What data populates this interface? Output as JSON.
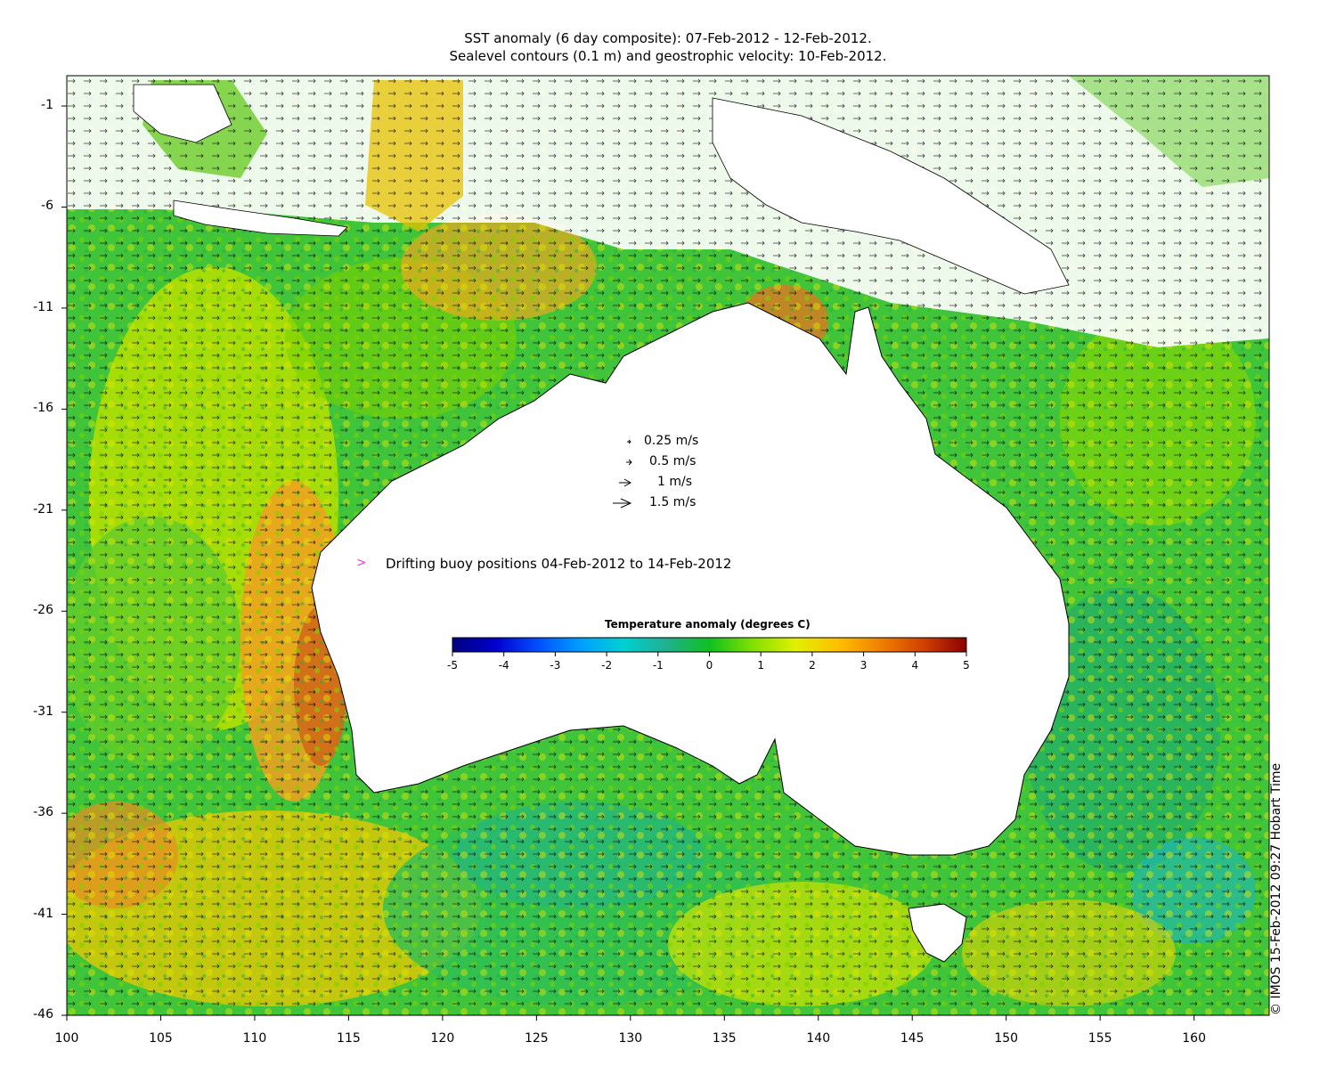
{
  "title": {
    "line1": "SST anomaly (6 day composite): 07-Feb-2012 - 12-Feb-2012.",
    "line2": "Sealevel contours (0.1 m) and geostrophic velocity: 10-Feb-2012."
  },
  "axes": {
    "x_ticks": [
      "100",
      "105",
      "110",
      "115",
      "120",
      "125",
      "130",
      "135",
      "140",
      "145",
      "150",
      "155",
      "160"
    ],
    "y_ticks": [
      "-1",
      "-6",
      "-11",
      "-16",
      "-21",
      "-26",
      "-31",
      "-36",
      "-41",
      "-46"
    ],
    "x_range": [
      100,
      164
    ],
    "y_range": [
      -46,
      0.5
    ]
  },
  "velocity_scale": {
    "items": [
      {
        "label": "0.25 m/s",
        "speed": 0.25
      },
      {
        "label": "0.5 m/s",
        "speed": 0.5
      },
      {
        "label": "1 m/s",
        "speed": 1
      },
      {
        "label": "1.5 m/s",
        "speed": 1.5
      }
    ]
  },
  "buoy_legend": {
    "symbol": ">",
    "label": "Drifting buoy positions 04-Feb-2012 to 14-Feb-2012",
    "color": "#e040e0"
  },
  "colorbar": {
    "title": "Temperature anomaly (degrees C)",
    "ticks": [
      "-5",
      "-4",
      "-3",
      "-2",
      "-1",
      "0",
      "1",
      "2",
      "3",
      "4",
      "5"
    ],
    "range": [
      -5,
      5
    ],
    "colors": [
      "#00007f",
      "#0000cd",
      "#0050ff",
      "#00a0ff",
      "#00d0d0",
      "#20b090",
      "#10c020",
      "#80e000",
      "#e0f000",
      "#ffc000",
      "#f08000",
      "#d04000",
      "#8b0000"
    ]
  },
  "credit": "© IMOS 15-Feb-2012 09:27 Hobart Time",
  "map_colors": {
    "land": "#ffffff",
    "coastline": "#000000",
    "contour": "#d8d8d8",
    "arrow": "#000000"
  }
}
